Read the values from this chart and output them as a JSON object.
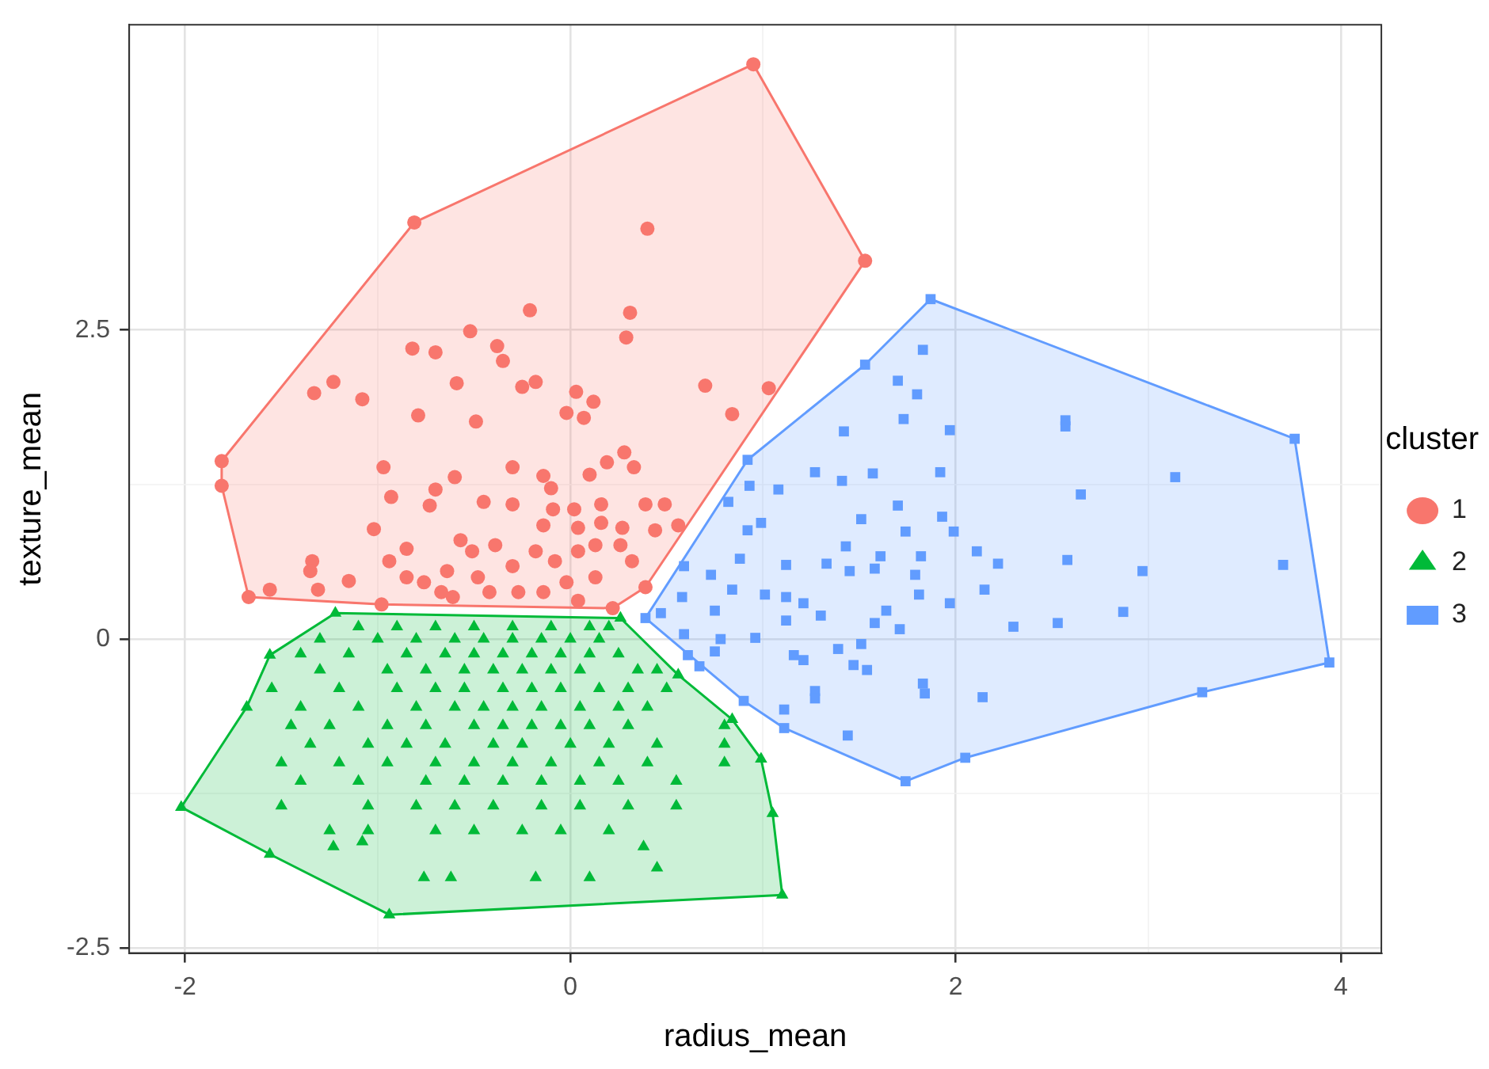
{
  "chart_data": {
    "type": "scatter",
    "xlabel": "radius_mean",
    "ylabel": "texture_mean",
    "legend_title": "cluster",
    "legend": "right",
    "grid": true,
    "xlim": [
      -2.29,
      4.21
    ],
    "ylim": [
      -2.54,
      4.97
    ],
    "xticks": [
      -2,
      0,
      2,
      4
    ],
    "yticks": [
      -2.5,
      0,
      2.5
    ],
    "series": [
      {
        "type": "area",
        "color": "#f8766d",
        "x": [
          0.95,
          1.53,
          0.39,
          0.22,
          -0.98,
          -1.67,
          -1.81,
          -1.81,
          -0.81
        ],
        "values": [
          4.65,
          3.06,
          0.42,
          0.25,
          0.28,
          0.34,
          1.24,
          1.44,
          3.37
        ]
      },
      {
        "type": "area",
        "color": "#00ba38",
        "x": [
          -2.02,
          -1.56,
          -0.94,
          1.1,
          1.05,
          0.99,
          0.84,
          0.56,
          0.26,
          -1.22,
          -1.56,
          -1.68
        ],
        "values": [
          -1.36,
          -1.74,
          -2.23,
          -2.07,
          -1.41,
          -0.97,
          -0.65,
          -0.29,
          0.17,
          0.21,
          -0.13,
          -0.55
        ]
      },
      {
        "type": "area",
        "color": "#619cff",
        "x": [
          1.87,
          3.76,
          3.94,
          3.28,
          2.05,
          1.74,
          1.11,
          0.9,
          0.39,
          0.92,
          1.53
        ],
        "values": [
          2.75,
          1.62,
          -0.19,
          -0.43,
          -0.96,
          -1.15,
          -0.72,
          -0.5,
          0.17,
          1.45,
          2.22
        ]
      },
      {
        "name": "1",
        "marker": "circle",
        "color": "#f8766d",
        "x": [
          0.95,
          1.53,
          0.39,
          0.22,
          -0.98,
          -1.67,
          -1.81,
          -1.81,
          -0.81,
          0.4,
          -0.21,
          0.31,
          0.29,
          -0.52,
          -0.82,
          -0.7,
          -0.38,
          -0.35,
          -1.33,
          -1.23,
          -1.08,
          -0.59,
          -0.25,
          -0.18,
          0.03,
          0.12,
          -0.02,
          0.07,
          -0.79,
          -0.49,
          0.7,
          1.03,
          0.84,
          -0.97,
          -0.93,
          -1.02,
          -0.7,
          -0.73,
          -0.6,
          -0.3,
          -0.3,
          -0.45,
          -0.14,
          -0.1,
          0.1,
          0.28,
          0.19,
          0.33,
          0.39,
          0.49,
          0.02,
          0.16,
          -0.09,
          -0.14,
          0.04,
          0.16,
          0.27,
          0.44,
          0.56,
          -0.57,
          -0.85,
          -0.94,
          -1.34,
          -1.35,
          -1.15,
          -1.56,
          -1.31,
          -0.85,
          -0.76,
          -0.64,
          -0.51,
          -0.39,
          -0.3,
          -0.18,
          -0.08,
          0.04,
          0.13,
          0.26,
          0.32,
          -0.02,
          0.13,
          -0.42,
          -0.27,
          -0.14,
          -0.61,
          -0.48,
          0.04,
          -0.67
        ],
        "values": [
          4.65,
          3.06,
          0.42,
          0.25,
          0.28,
          0.34,
          1.24,
          1.44,
          3.37,
          3.32,
          2.66,
          2.64,
          2.44,
          2.49,
          2.35,
          2.32,
          2.37,
          2.25,
          1.99,
          2.08,
          1.94,
          2.07,
          2.04,
          2.08,
          2.0,
          1.92,
          1.83,
          1.79,
          1.81,
          1.76,
          2.05,
          2.03,
          1.82,
          1.39,
          1.15,
          0.89,
          1.21,
          1.08,
          1.31,
          1.39,
          1.09,
          1.11,
          1.32,
          1.22,
          1.33,
          1.51,
          1.43,
          1.39,
          1.09,
          1.09,
          1.05,
          1.09,
          1.05,
          0.92,
          0.9,
          0.94,
          0.9,
          0.88,
          0.92,
          0.8,
          0.73,
          0.63,
          0.63,
          0.55,
          0.47,
          0.4,
          0.4,
          0.5,
          0.46,
          0.55,
          0.71,
          0.76,
          0.59,
          0.71,
          0.63,
          0.71,
          0.76,
          0.76,
          0.63,
          0.46,
          0.5,
          0.38,
          0.38,
          0.38,
          0.34,
          0.5,
          0.31,
          0.38
        ]
      },
      {
        "name": "2",
        "marker": "triangle",
        "color": "#00ba38",
        "x": [
          -2.02,
          -1.56,
          -0.94,
          1.1,
          1.05,
          0.99,
          0.84,
          0.56,
          0.26,
          -1.22,
          -1.56,
          -1.68,
          -1.1,
          -0.9,
          -0.7,
          -0.5,
          -0.3,
          -0.1,
          0.1,
          0.2,
          -1.3,
          -1.0,
          -0.8,
          -0.6,
          -0.45,
          -0.3,
          -0.15,
          0.0,
          0.15,
          -1.4,
          -1.15,
          -0.85,
          -0.65,
          -0.5,
          -0.35,
          -0.2,
          -0.05,
          0.1,
          0.25,
          -1.3,
          -0.95,
          -0.75,
          -0.55,
          -0.4,
          -0.25,
          -0.1,
          0.05,
          0.35,
          0.45,
          -1.55,
          -1.2,
          -0.9,
          -0.7,
          -0.55,
          -0.35,
          -0.2,
          -0.05,
          0.15,
          0.3,
          0.5,
          -1.4,
          -1.1,
          -0.8,
          -0.6,
          -0.45,
          -0.3,
          -0.15,
          0.05,
          0.25,
          0.4,
          -1.45,
          -1.25,
          -0.95,
          -0.75,
          -0.5,
          -0.35,
          -0.2,
          -0.05,
          0.1,
          0.3,
          0.8,
          -1.35,
          -1.05,
          -0.85,
          -0.65,
          -0.4,
          -0.25,
          0.0,
          0.2,
          0.45,
          0.8,
          -1.5,
          -1.2,
          -0.95,
          -0.7,
          -0.5,
          -0.3,
          -0.1,
          0.15,
          0.4,
          0.8,
          -1.4,
          -1.1,
          -0.75,
          -0.55,
          -0.35,
          -0.15,
          0.05,
          0.25,
          0.55,
          -1.5,
          -1.05,
          -0.8,
          -0.6,
          -0.4,
          -0.15,
          0.05,
          0.3,
          0.55,
          -1.25,
          -1.05,
          -0.7,
          -0.5,
          -0.25,
          -0.05,
          0.2,
          -1.23,
          -1.08,
          0.38,
          0.45,
          -0.76,
          -0.62,
          -0.18,
          0.1
        ],
        "values": [
          -1.36,
          -1.74,
          -2.23,
          -2.07,
          -1.41,
          -0.97,
          -0.65,
          -0.29,
          0.17,
          0.21,
          -0.13,
          -0.55,
          0.1,
          0.1,
          0.1,
          0.1,
          0.1,
          0.1,
          0.1,
          0.1,
          0.0,
          0.0,
          0.0,
          0.0,
          0.0,
          0.0,
          0.0,
          0.0,
          0.0,
          -0.12,
          -0.12,
          -0.12,
          -0.12,
          -0.12,
          -0.12,
          -0.12,
          -0.12,
          -0.12,
          -0.12,
          -0.25,
          -0.25,
          -0.25,
          -0.25,
          -0.25,
          -0.25,
          -0.25,
          -0.25,
          -0.25,
          -0.25,
          -0.4,
          -0.4,
          -0.4,
          -0.4,
          -0.4,
          -0.4,
          -0.4,
          -0.4,
          -0.4,
          -0.4,
          -0.4,
          -0.55,
          -0.55,
          -0.55,
          -0.55,
          -0.55,
          -0.55,
          -0.55,
          -0.55,
          -0.55,
          -0.55,
          -0.7,
          -0.7,
          -0.7,
          -0.7,
          -0.7,
          -0.7,
          -0.7,
          -0.7,
          -0.7,
          -0.7,
          -0.7,
          -0.85,
          -0.85,
          -0.85,
          -0.85,
          -0.85,
          -0.85,
          -0.85,
          -0.85,
          -0.85,
          -0.85,
          -1.0,
          -1.0,
          -1.0,
          -1.0,
          -1.0,
          -1.0,
          -1.0,
          -1.0,
          -1.0,
          -1.0,
          -1.15,
          -1.15,
          -1.15,
          -1.15,
          -1.15,
          -1.15,
          -1.15,
          -1.15,
          -1.15,
          -1.35,
          -1.35,
          -1.35,
          -1.35,
          -1.35,
          -1.35,
          -1.35,
          -1.35,
          -1.35,
          -1.55,
          -1.55,
          -1.55,
          -1.55,
          -1.55,
          -1.55,
          -1.55,
          -1.68,
          -1.64,
          -1.68,
          -1.85,
          -1.93,
          -1.93,
          -1.93,
          -1.93
        ]
      },
      {
        "name": "3",
        "marker": "square",
        "color": "#619cff",
        "x": [
          1.87,
          3.76,
          3.94,
          3.28,
          2.05,
          1.74,
          1.11,
          0.9,
          0.39,
          0.92,
          1.53,
          1.83,
          1.7,
          1.8,
          1.73,
          1.97,
          1.42,
          2.57,
          2.57,
          1.27,
          1.41,
          1.57,
          1.92,
          3.14,
          2.65,
          1.08,
          0.93,
          0.82,
          1.7,
          1.51,
          0.99,
          1.74,
          1.93,
          1.99,
          0.92,
          1.43,
          0.88,
          1.12,
          1.33,
          1.45,
          1.58,
          1.61,
          1.82,
          1.79,
          2.11,
          2.22,
          2.58,
          2.97,
          3.7,
          0.59,
          0.73,
          0.84,
          1.01,
          1.12,
          1.21,
          1.3,
          1.81,
          1.97,
          2.15,
          0.58,
          0.75,
          0.47,
          1.64,
          1.58,
          1.71,
          2.3,
          2.53,
          2.87,
          1.12,
          0.59,
          0.78,
          0.96,
          0.61,
          0.75,
          0.67,
          1.16,
          1.21,
          1.39,
          1.51,
          1.47,
          1.54,
          1.27,
          1.27,
          1.83,
          1.84,
          2.14,
          1.11,
          1.44
        ],
        "values": [
          2.75,
          1.62,
          -0.19,
          -0.43,
          -0.96,
          -1.15,
          -0.72,
          -0.5,
          0.17,
          1.45,
          2.22,
          2.34,
          2.09,
          1.98,
          1.78,
          1.69,
          1.68,
          1.77,
          1.72,
          1.35,
          1.28,
          1.34,
          1.35,
          1.31,
          1.17,
          1.21,
          1.24,
          1.11,
          1.08,
          0.97,
          0.94,
          0.87,
          0.99,
          0.87,
          0.88,
          0.75,
          0.65,
          0.6,
          0.61,
          0.55,
          0.57,
          0.67,
          0.67,
          0.52,
          0.71,
          0.61,
          0.64,
          0.55,
          0.6,
          0.59,
          0.52,
          0.4,
          0.36,
          0.34,
          0.29,
          0.19,
          0.36,
          0.29,
          0.4,
          0.34,
          0.23,
          0.21,
          0.23,
          0.13,
          0.08,
          0.1,
          0.13,
          0.22,
          0.15,
          0.04,
          0.0,
          0.01,
          -0.13,
          -0.1,
          -0.22,
          -0.13,
          -0.17,
          -0.08,
          -0.04,
          -0.21,
          -0.25,
          -0.42,
          -0.48,
          -0.36,
          -0.44,
          -0.47,
          -0.57,
          -0.78
        ]
      }
    ]
  }
}
